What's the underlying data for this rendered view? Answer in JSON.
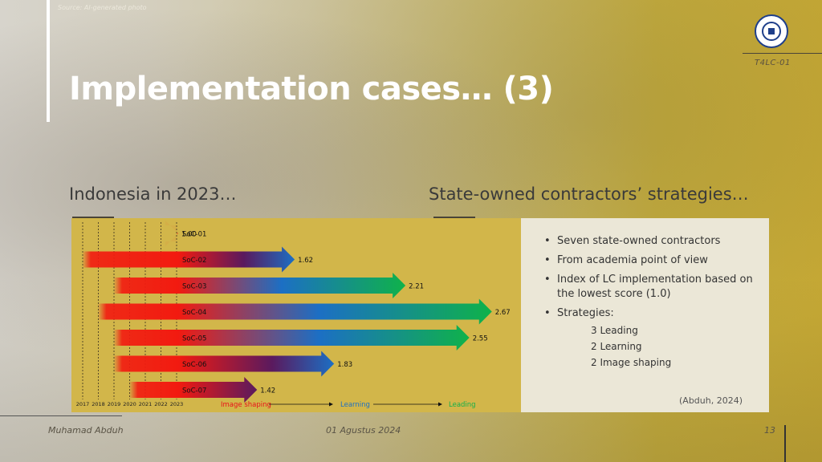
{
  "slide": {
    "source_note": "Source: AI-generated photo",
    "title": "Implementation cases… (3)",
    "code": "T4LC-01",
    "logo_icon": "university-seal-icon",
    "left_heading": "Indonesia in 2023…",
    "right_heading": "State-owned contractors’ strategies…",
    "bullets": [
      "Seven state-owned contractors",
      "From academia point of view",
      "Index of LC implementation based on the lowest score (1.0)",
      "Strategies:"
    ],
    "strategies": [
      "3 Leading",
      "2 Learning",
      "2 Image shaping"
    ],
    "citation": "(Abduh, 2024)",
    "footer": {
      "author": "Muhamad Abduh",
      "date": "01 Agustus 2024",
      "page": "13"
    }
  },
  "chart_data": {
    "type": "bar",
    "orientation": "horizontal",
    "categories": [
      "SoC-01",
      "SoC-02",
      "SoC-03",
      "SoC-04",
      "SoC-05",
      "SoC-06",
      "SoC-07"
    ],
    "values": [
      1.0,
      1.62,
      2.21,
      2.67,
      2.55,
      1.83,
      1.42
    ],
    "start_years": [
      2023,
      2017,
      2019,
      2018,
      2019,
      2019,
      2020
    ],
    "years": [
      "2017",
      "2018",
      "2019",
      "2020",
      "2021",
      "2022",
      "2023"
    ],
    "stages": [
      "Image shaping",
      "Learning",
      "Leading"
    ],
    "stage_colors": [
      "#e8111a",
      "#1c6fc4",
      "#12b04a"
    ],
    "colors": {
      "red": "#f21a10",
      "blue": "#1c6fc4",
      "green": "#0fb24a",
      "purple": "#5a1a5e"
    }
  }
}
